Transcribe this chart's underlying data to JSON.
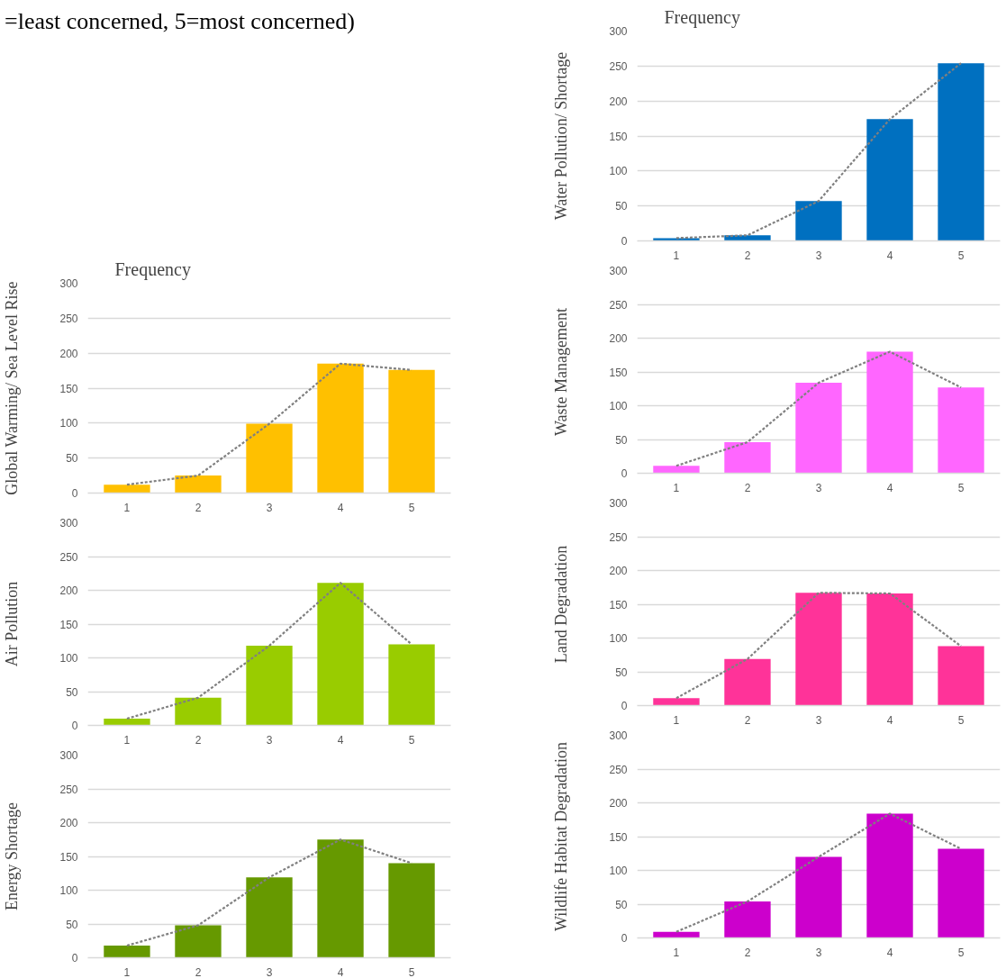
{
  "chart_data": [
    {
      "type": "bar",
      "title": "Frequency",
      "ylabel": "Water Pollution/ Shortage",
      "annotations": [
        "=least concerned, 5=most concerned)"
      ],
      "categories": [
        "1",
        "2",
        "3",
        "4",
        "5"
      ],
      "ylim": [
        0,
        300
      ],
      "yticks": [
        0,
        50,
        100,
        150,
        200,
        250,
        300
      ],
      "grid": "y",
      "series": [
        {
          "color": "#0070c0",
          "values": [
            4,
            8,
            57,
            174,
            254
          ]
        },
        {
          "type": "line",
          "color": "#808080",
          "line_style": "dashed",
          "values": [
            4,
            8,
            57,
            174,
            254
          ]
        }
      ]
    },
    {
      "type": "bar",
      "title": "Frequency",
      "ylabel": "Global Warming/ Sea Level Rise",
      "categories": [
        "1",
        "2",
        "3",
        "4",
        "5"
      ],
      "ylim": [
        0,
        300
      ],
      "yticks": [
        0,
        50,
        100,
        150,
        200,
        250,
        300
      ],
      "grid": "y",
      "series": [
        {
          "color": "#ffc000",
          "values": [
            12,
            25,
            99,
            185,
            176
          ]
        },
        {
          "type": "line",
          "color": "#808080",
          "line_style": "dashed",
          "values": [
            12,
            25,
            99,
            185,
            176
          ]
        }
      ]
    },
    {
      "type": "bar",
      "ylabel": "Waste Management",
      "categories": [
        "1",
        "2",
        "3",
        "4",
        "5"
      ],
      "ylim": [
        0,
        300
      ],
      "yticks": [
        0,
        50,
        100,
        150,
        200,
        250,
        300
      ],
      "grid": "y",
      "series": [
        {
          "color": "#ff66ff",
          "values": [
            11,
            46,
            134,
            180,
            127
          ]
        },
        {
          "type": "line",
          "color": "#808080",
          "line_style": "dashed",
          "values": [
            11,
            46,
            134,
            180,
            127
          ]
        }
      ]
    },
    {
      "type": "bar",
      "ylabel": "Air Pollution",
      "categories": [
        "1",
        "2",
        "3",
        "4",
        "5"
      ],
      "ylim": [
        0,
        300
      ],
      "yticks": [
        0,
        50,
        100,
        150,
        200,
        250,
        300
      ],
      "grid": "y",
      "series": [
        {
          "color": "#99cc00",
          "values": [
            10,
            41,
            118,
            211,
            120
          ]
        },
        {
          "type": "line",
          "color": "#808080",
          "line_style": "dashed",
          "values": [
            10,
            41,
            118,
            211,
            120
          ]
        }
      ]
    },
    {
      "type": "bar",
      "ylabel": "Land Degradation",
      "categories": [
        "1",
        "2",
        "3",
        "4",
        "5"
      ],
      "ylim": [
        0,
        300
      ],
      "yticks": [
        0,
        50,
        100,
        150,
        200,
        250,
        300
      ],
      "grid": "y",
      "series": [
        {
          "color": "#ff3399",
          "values": [
            11,
            69,
            167,
            166,
            88
          ]
        },
        {
          "type": "line",
          "color": "#808080",
          "line_style": "dashed",
          "values": [
            11,
            69,
            167,
            166,
            88
          ]
        }
      ]
    },
    {
      "type": "bar",
      "ylabel": "Energy Shortage",
      "categories": [
        "1",
        "2",
        "3",
        "4",
        "5"
      ],
      "ylim": [
        0,
        300
      ],
      "yticks": [
        0,
        50,
        100,
        150,
        200,
        250,
        300
      ],
      "grid": "y",
      "series": [
        {
          "color": "#669900",
          "values": [
            18,
            48,
            119,
            175,
            140
          ]
        },
        {
          "type": "line",
          "color": "#808080",
          "line_style": "dashed",
          "values": [
            18,
            48,
            119,
            175,
            140
          ]
        }
      ]
    },
    {
      "type": "bar",
      "ylabel": "Wildlife Habitat Degradation",
      "categories": [
        "1",
        "2",
        "3",
        "4",
        "5"
      ],
      "ylim": [
        0,
        300
      ],
      "yticks": [
        0,
        50,
        100,
        150,
        200,
        250,
        300
      ],
      "grid": "y",
      "series": [
        {
          "color": "#cc00cc",
          "values": [
            9,
            54,
            120,
            184,
            132
          ]
        },
        {
          "type": "line",
          "color": "#808080",
          "line_style": "dashed",
          "values": [
            9,
            54,
            120,
            184,
            132
          ]
        }
      ]
    }
  ]
}
